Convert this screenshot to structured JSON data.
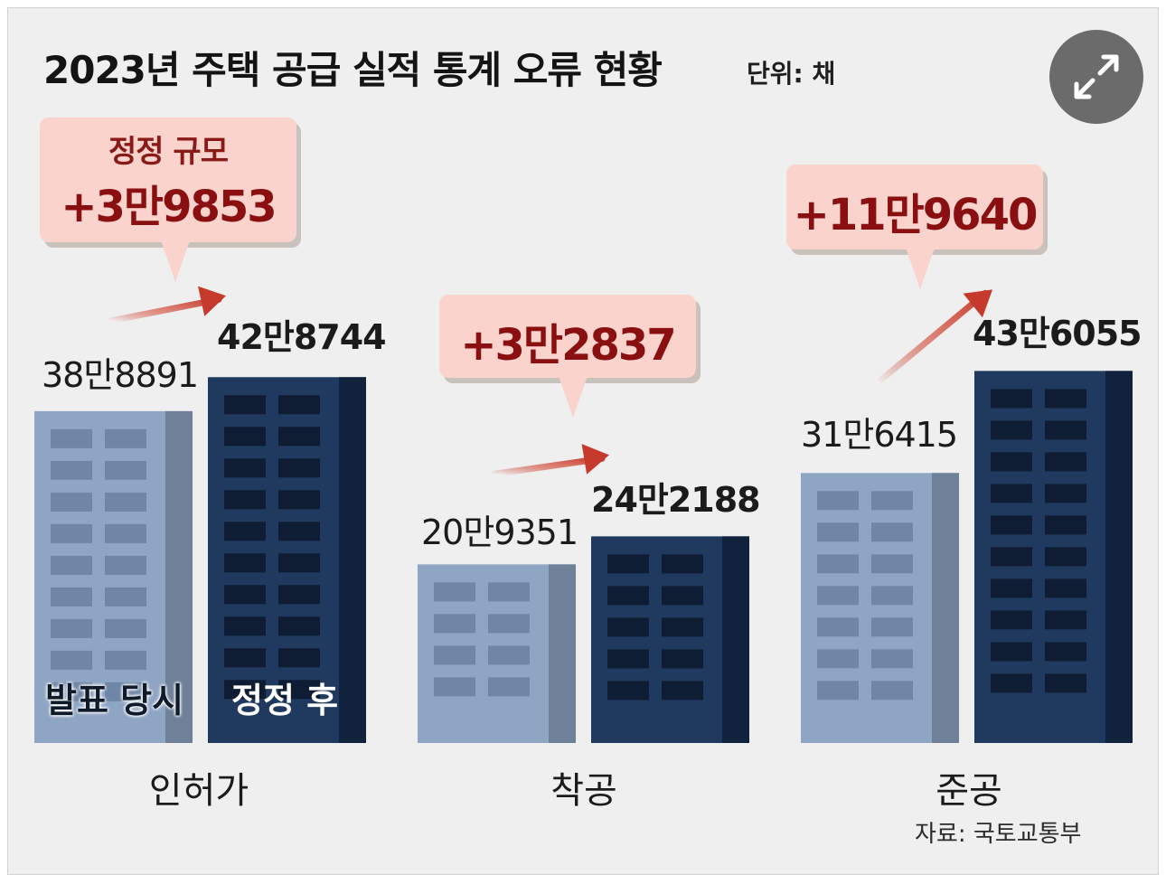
{
  "header": {
    "title": "2023년 주택 공급 실적 통계 오류 현황",
    "unit": "단위: 채"
  },
  "bar_tags": {
    "announced": "발표 당시",
    "corrected": "정정 후"
  },
  "callout_label": "정정 규모",
  "source": "자료: 국토교통부",
  "icons": {
    "expand": "expand-arrows-icon"
  },
  "colors": {
    "announced_bar": "#8fa5c4",
    "corrected_bar": "#1f3a5e",
    "callout_bg": "#f9d3cc",
    "callout_text": "#8a0f10",
    "arrow": "#c63a2d"
  },
  "chart_data": {
    "type": "bar",
    "categories": [
      "인허가",
      "착공",
      "준공"
    ],
    "series": [
      {
        "name": "발표 당시",
        "values": [
          388891,
          209351,
          316415
        ]
      },
      {
        "name": "정정 후",
        "values": [
          428744,
          242188,
          436055
        ]
      }
    ],
    "value_labels": {
      "announced": [
        "38만8891",
        "20만9351",
        "31만6415"
      ],
      "corrected": [
        "42만8744",
        "24만2188",
        "43만6055"
      ]
    },
    "corrections": [
      "+3만9853",
      "+3만2837",
      "+11만9640"
    ],
    "correction_values": [
      39853,
      32837,
      119640
    ],
    "title": "2023년 주택 공급 실적 통계 오류 현황",
    "ylabel": "",
    "xlabel": ""
  }
}
